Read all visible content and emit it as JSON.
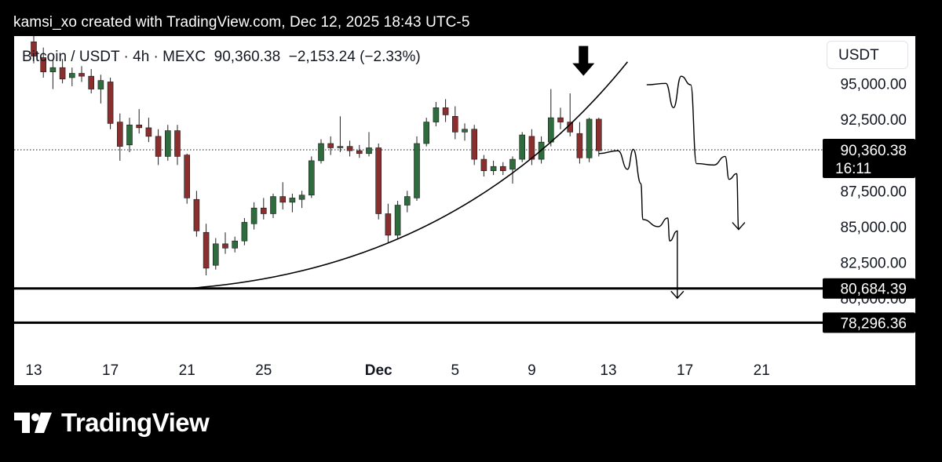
{
  "header": {
    "attribution": "kamsi_xo created with TradingView.com, Dec 12, 2025 18:43 UTC-5"
  },
  "symbol": {
    "name": "Bitcoin / USDT",
    "interval": "4h",
    "exchange": "MEXC",
    "price": "90,360.38",
    "change": "−2,153.24",
    "change_pct": "(−2.33%)"
  },
  "currency_badge": "USDT",
  "footer": {
    "brand": "TradingView"
  },
  "chart_data": {
    "type": "candlestick",
    "y_axis": {
      "min": 76400,
      "max": 98300,
      "ticks": [
        {
          "value": 95000,
          "label": "95,000.00"
        },
        {
          "value": 92500,
          "label": "92,500.00"
        },
        {
          "value": 87500,
          "label": "87,500.00"
        },
        {
          "value": 85000,
          "label": "85,000.00"
        },
        {
          "value": 82500,
          "label": "82,500.00"
        },
        {
          "value": 80000,
          "label": "80,000.00"
        }
      ]
    },
    "x_axis": {
      "ticks": [
        {
          "label": "13",
          "day": 0
        },
        {
          "label": "17",
          "day": 4
        },
        {
          "label": "21",
          "day": 8
        },
        {
          "label": "25",
          "day": 12
        },
        {
          "label": "Dec",
          "day": 18,
          "bold": true
        },
        {
          "label": "5",
          "day": 22
        },
        {
          "label": "9",
          "day": 26
        },
        {
          "label": "13",
          "day": 30
        },
        {
          "label": "17",
          "day": 34
        },
        {
          "label": "21",
          "day": 38
        }
      ]
    },
    "current_price": {
      "value": 90360.38,
      "label": "90,360.38",
      "countdown": "16:11"
    },
    "horizontal_levels": [
      {
        "value": 80684.39,
        "label": "80,684.39"
      },
      {
        "value": 78296.36,
        "label": "78,296.36"
      }
    ],
    "candles": [
      [
        0.0,
        97900,
        98400,
        96400,
        96900
      ],
      [
        0.5,
        96800,
        97500,
        95400,
        95800
      ],
      [
        1.0,
        95800,
        96600,
        94600,
        96100
      ],
      [
        1.5,
        96100,
        96700,
        95000,
        95300
      ],
      [
        2.0,
        95400,
        96100,
        94800,
        95700
      ],
      [
        2.5,
        95700,
        96200,
        95100,
        95500
      ],
      [
        3.0,
        95500,
        96000,
        94300,
        94600
      ],
      [
        3.5,
        94600,
        95600,
        93600,
        95200
      ],
      [
        4.0,
        95100,
        95400,
        91800,
        92200
      ],
      [
        4.5,
        92300,
        92900,
        89600,
        90600
      ],
      [
        5.0,
        90700,
        92600,
        90200,
        92100
      ],
      [
        5.5,
        92100,
        93200,
        91500,
        91900
      ],
      [
        6.0,
        91900,
        92600,
        90900,
        91300
      ],
      [
        6.5,
        91300,
        91800,
        89300,
        89900
      ],
      [
        7.0,
        89900,
        92100,
        89600,
        91700
      ],
      [
        7.5,
        91700,
        92100,
        89300,
        89900
      ],
      [
        8.0,
        90000,
        90100,
        86600,
        87000
      ],
      [
        8.5,
        86900,
        87500,
        84300,
        84700
      ],
      [
        9.0,
        84600,
        85200,
        81600,
        82100
      ],
      [
        9.5,
        82300,
        84200,
        82000,
        83800
      ],
      [
        10.0,
        83800,
        84600,
        83100,
        83500
      ],
      [
        10.5,
        83500,
        84300,
        83200,
        84000
      ],
      [
        11.0,
        84000,
        85600,
        83700,
        85300
      ],
      [
        11.5,
        85200,
        86700,
        84800,
        86300
      ],
      [
        12.0,
        86300,
        87000,
        85500,
        85900
      ],
      [
        12.5,
        85900,
        87300,
        85600,
        87100
      ],
      [
        13.0,
        87100,
        88100,
        86200,
        86700
      ],
      [
        13.5,
        86700,
        87300,
        86000,
        87000
      ],
      [
        14.0,
        86900,
        87500,
        86300,
        87200
      ],
      [
        14.5,
        87200,
        89900,
        87000,
        89600
      ],
      [
        15.0,
        89600,
        91100,
        89400,
        90800
      ],
      [
        15.5,
        90800,
        91300,
        90000,
        90500
      ],
      [
        16.0,
        90500,
        92700,
        90200,
        90600
      ],
      [
        16.5,
        90600,
        91000,
        89900,
        90300
      ],
      [
        17.0,
        90300,
        90700,
        89800,
        90100
      ],
      [
        17.5,
        90100,
        91600,
        89900,
        90500
      ],
      [
        18.0,
        90500,
        90800,
        85500,
        85900
      ],
      [
        18.5,
        85900,
        86600,
        83900,
        84400
      ],
      [
        19.0,
        84400,
        86800,
        84100,
        86500
      ],
      [
        19.5,
        86500,
        87500,
        86000,
        87100
      ],
      [
        20.0,
        87000,
        91300,
        86800,
        90800
      ],
      [
        20.5,
        90800,
        92600,
        90600,
        92300
      ],
      [
        21.0,
        92300,
        93700,
        92000,
        93300
      ],
      [
        21.5,
        93300,
        93900,
        92300,
        92800
      ],
      [
        22.0,
        92700,
        93400,
        91100,
        91600
      ],
      [
        22.5,
        91600,
        92200,
        91000,
        91800
      ],
      [
        23.0,
        91800,
        92100,
        89300,
        89700
      ],
      [
        23.5,
        89700,
        90000,
        88500,
        88900
      ],
      [
        24.0,
        88900,
        89600,
        88600,
        89200
      ],
      [
        24.5,
        89200,
        89500,
        88600,
        88900
      ],
      [
        25.0,
        89000,
        89900,
        88000,
        89700
      ],
      [
        25.5,
        89700,
        91600,
        89500,
        91400
      ],
      [
        26.0,
        91300,
        91800,
        89300,
        89700
      ],
      [
        26.5,
        89700,
        91300,
        89400,
        90900
      ],
      [
        27.0,
        90900,
        94600,
        90600,
        92600
      ],
      [
        27.5,
        92600,
        93300,
        91800,
        92300
      ],
      [
        28.0,
        92300,
        94300,
        91300,
        91600
      ],
      [
        28.5,
        91500,
        92300,
        89400,
        89800
      ],
      [
        29.0,
        89800,
        92600,
        89500,
        92500
      ],
      [
        29.5,
        92500,
        92600,
        89900,
        90300
      ]
    ],
    "annotations": [
      {
        "type": "arc",
        "description": "rising curved support line",
        "from_day": 8.0,
        "from_value": 80684.39,
        "to_day": 31.0,
        "to_value": 96500
      },
      {
        "type": "arrow-marker",
        "day": 28.7,
        "value": 95200
      },
      {
        "type": "freehand-path",
        "description": "projected drop toward 80,684",
        "points": [
          [
            29.5,
            90100
          ],
          [
            30.5,
            90300
          ],
          [
            31.0,
            89000
          ],
          [
            31.3,
            90400
          ],
          [
            31.7,
            88000
          ],
          [
            31.8,
            85500
          ],
          [
            32.6,
            85000
          ],
          [
            33.1,
            85600
          ],
          [
            33.2,
            84000
          ],
          [
            33.6,
            84700
          ],
          [
            33.6,
            80000
          ]
        ]
      },
      {
        "type": "freehand-path",
        "description": "projected drop toward 85,000",
        "points": [
          [
            32.0,
            94900
          ],
          [
            33.0,
            95000
          ],
          [
            33.4,
            93300
          ],
          [
            33.8,
            95500
          ],
          [
            34.3,
            94900
          ],
          [
            34.6,
            89400
          ],
          [
            35.5,
            89300
          ],
          [
            36.1,
            89900
          ],
          [
            36.3,
            88300
          ],
          [
            36.7,
            88700
          ],
          [
            36.8,
            84800
          ]
        ]
      }
    ]
  }
}
